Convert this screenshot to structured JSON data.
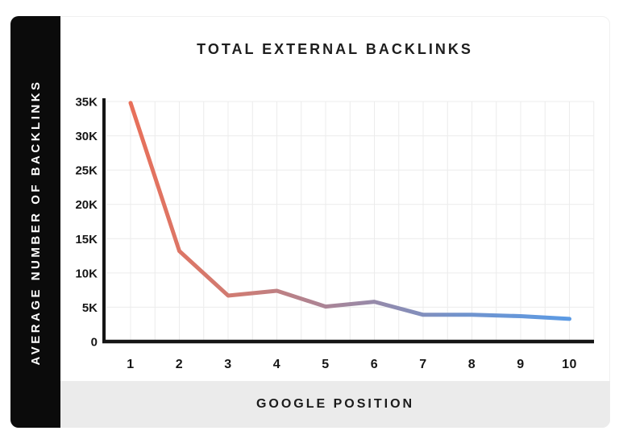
{
  "sidebar": {
    "bg": "#0b0b0b",
    "text_color": "#ffffff"
  },
  "footer": {
    "bg": "#ebebeb"
  },
  "chart_data": {
    "type": "line",
    "title": "TOTAL EXTERNAL BACKLINKS",
    "xlabel": "GOOGLE POSITION",
    "ylabel": "AVERAGE NUMBER OF BACKLINKS",
    "categories": [
      "1",
      "2",
      "3",
      "4",
      "5",
      "6",
      "7",
      "8",
      "9",
      "10"
    ],
    "values": [
      34800,
      13200,
      6700,
      7400,
      5100,
      5800,
      3900,
      3900,
      3700,
      3300
    ],
    "y_ticks": [
      "0",
      "5K",
      "10K",
      "15K",
      "20K",
      "25K",
      "30K",
      "35K"
    ],
    "ylim": [
      0,
      35000
    ],
    "grid": true,
    "legend": "none",
    "axis_color": "#151515",
    "grid_color": "#ececec",
    "line_gradient": [
      "#E8705A",
      "#CE7C74",
      "#A087A0",
      "#7293CC",
      "#5B9AE4"
    ]
  }
}
